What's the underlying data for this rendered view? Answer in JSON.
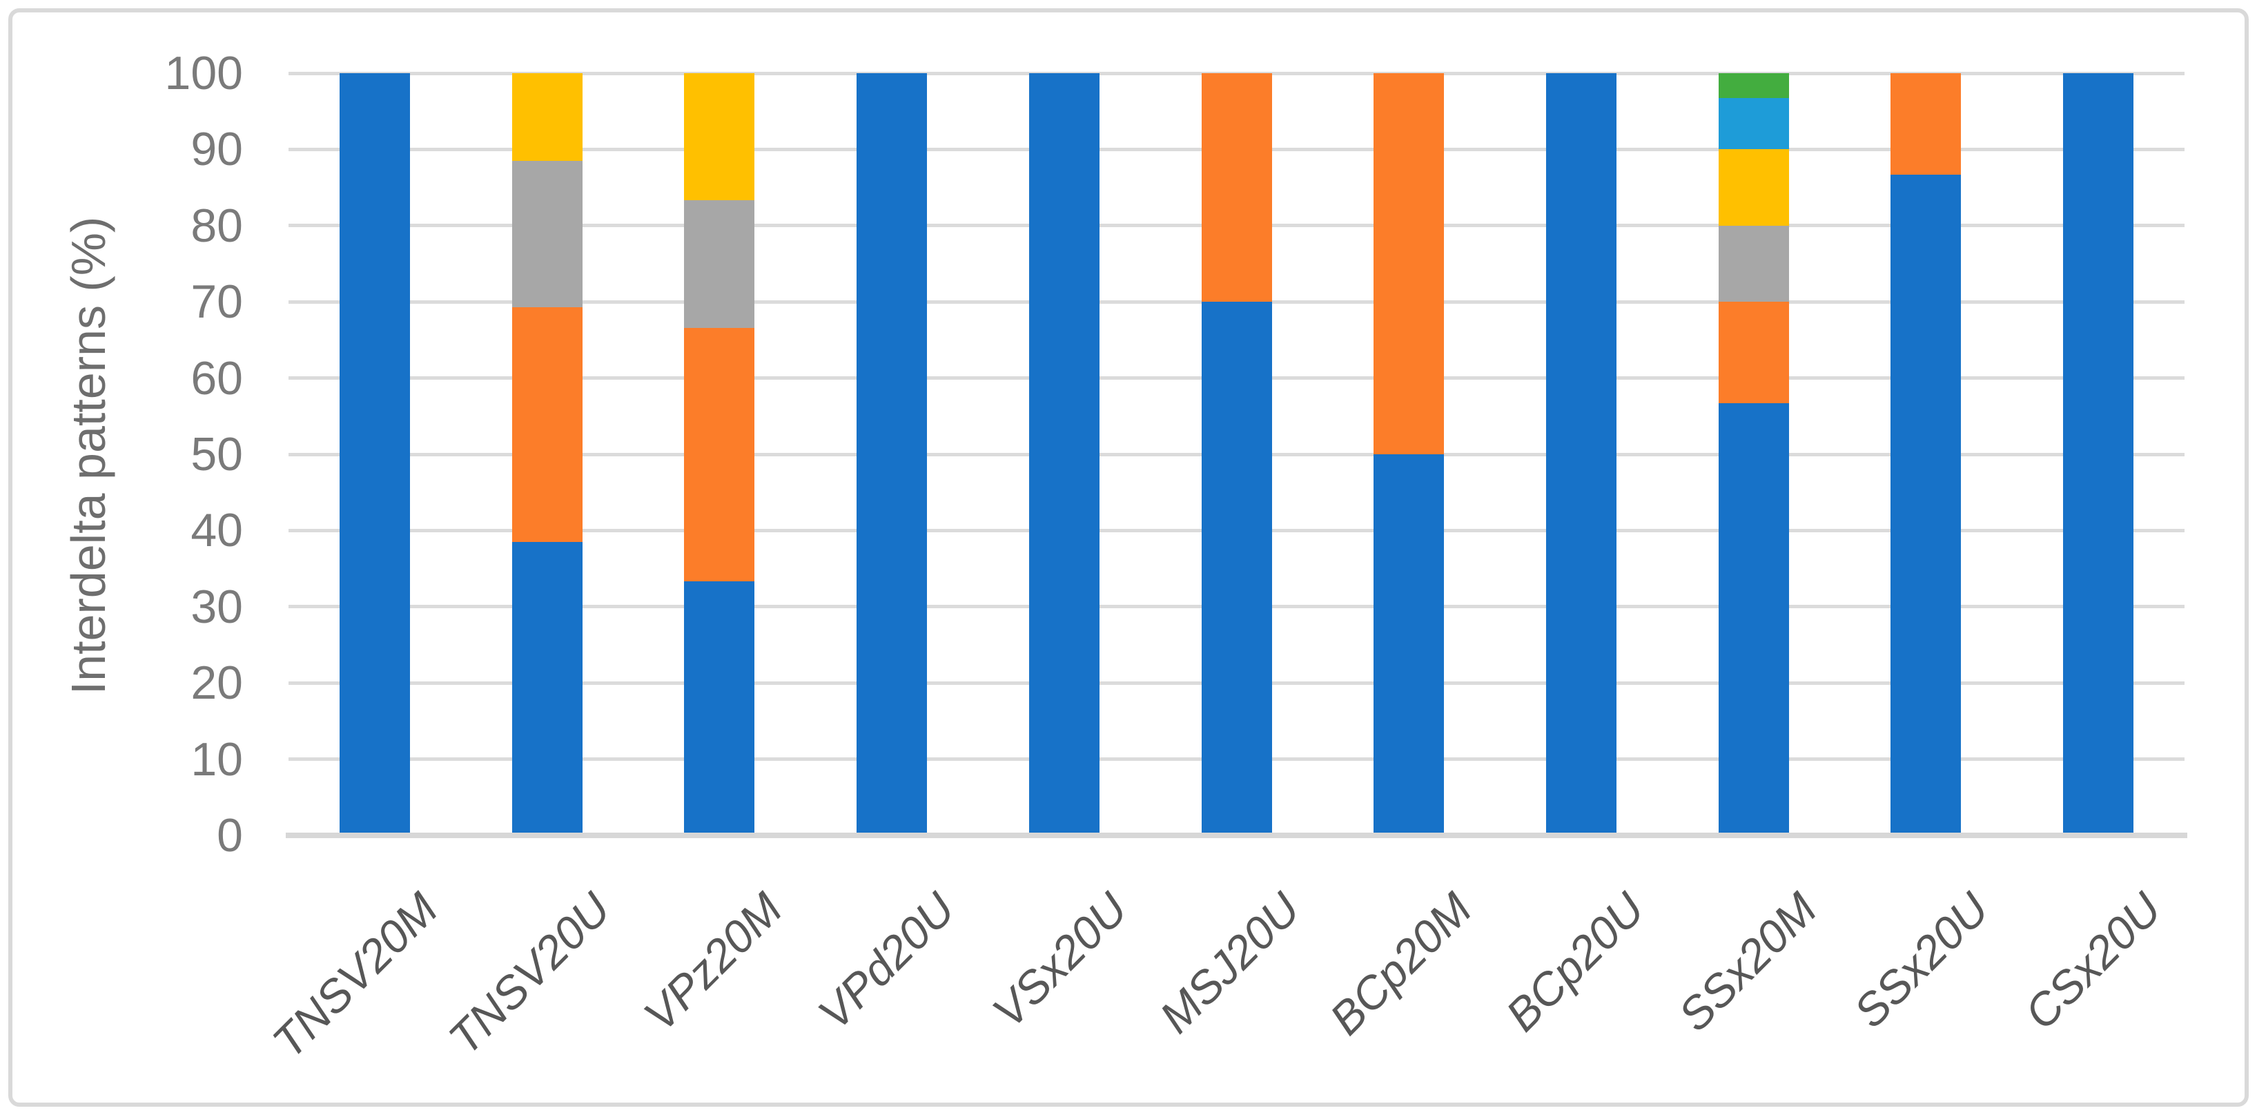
{
  "figure": {
    "background": "#FFFFFF",
    "border_color": "#D9D9D9",
    "gridline_color": "#DBDBDB",
    "axis_line_color": "#D7D7D7",
    "tick_label_color": "#7A7A7A",
    "category_label_color": "#575757"
  },
  "chart_data": {
    "type": "bar",
    "stacked": true,
    "units": "percent",
    "title": "",
    "xlabel": "",
    "ylabel": "Interdelta patterns (%)",
    "ylim": [
      0,
      100
    ],
    "yticks": [
      0,
      10,
      20,
      30,
      40,
      50,
      60,
      70,
      80,
      90,
      100
    ],
    "grid": "horizontal",
    "legend_position": "none",
    "category_label_style": "italic rotated 45deg",
    "categories": [
      "TNSV20M",
      "TNSV20U",
      "VPz20M",
      "VPd20U",
      "VSx20U",
      "MSJ20U",
      "BCp20M",
      "BCp20U",
      "SSx20M",
      "SSx20U",
      "CSx20U"
    ],
    "series": [
      {
        "name": "blue",
        "color": "#1772C8",
        "values": [
          100,
          38.5,
          33.3,
          100,
          100,
          70,
          50,
          100,
          56.7,
          86.7,
          100
        ]
      },
      {
        "name": "orange",
        "color": "#FC7D29",
        "values": [
          0,
          30.8,
          33.3,
          0,
          0,
          30,
          50,
          0,
          13.3,
          13.3,
          0
        ]
      },
      {
        "name": "gray",
        "color": "#A7A7A7",
        "values": [
          0,
          19.2,
          16.7,
          0,
          0,
          0,
          0,
          0,
          10,
          0,
          0
        ]
      },
      {
        "name": "yellow",
        "color": "#FFC000",
        "values": [
          0,
          11.5,
          16.7,
          0,
          0,
          0,
          0,
          0,
          10,
          0,
          0
        ]
      },
      {
        "name": "light-blue",
        "color": "#1E9CD8",
        "values": [
          0,
          0,
          0,
          0,
          0,
          0,
          0,
          0,
          6.7,
          0,
          0
        ]
      },
      {
        "name": "green",
        "color": "#43AD3F",
        "values": [
          0,
          0,
          0,
          0,
          0,
          0,
          0,
          0,
          3.3,
          0,
          0
        ]
      }
    ]
  }
}
